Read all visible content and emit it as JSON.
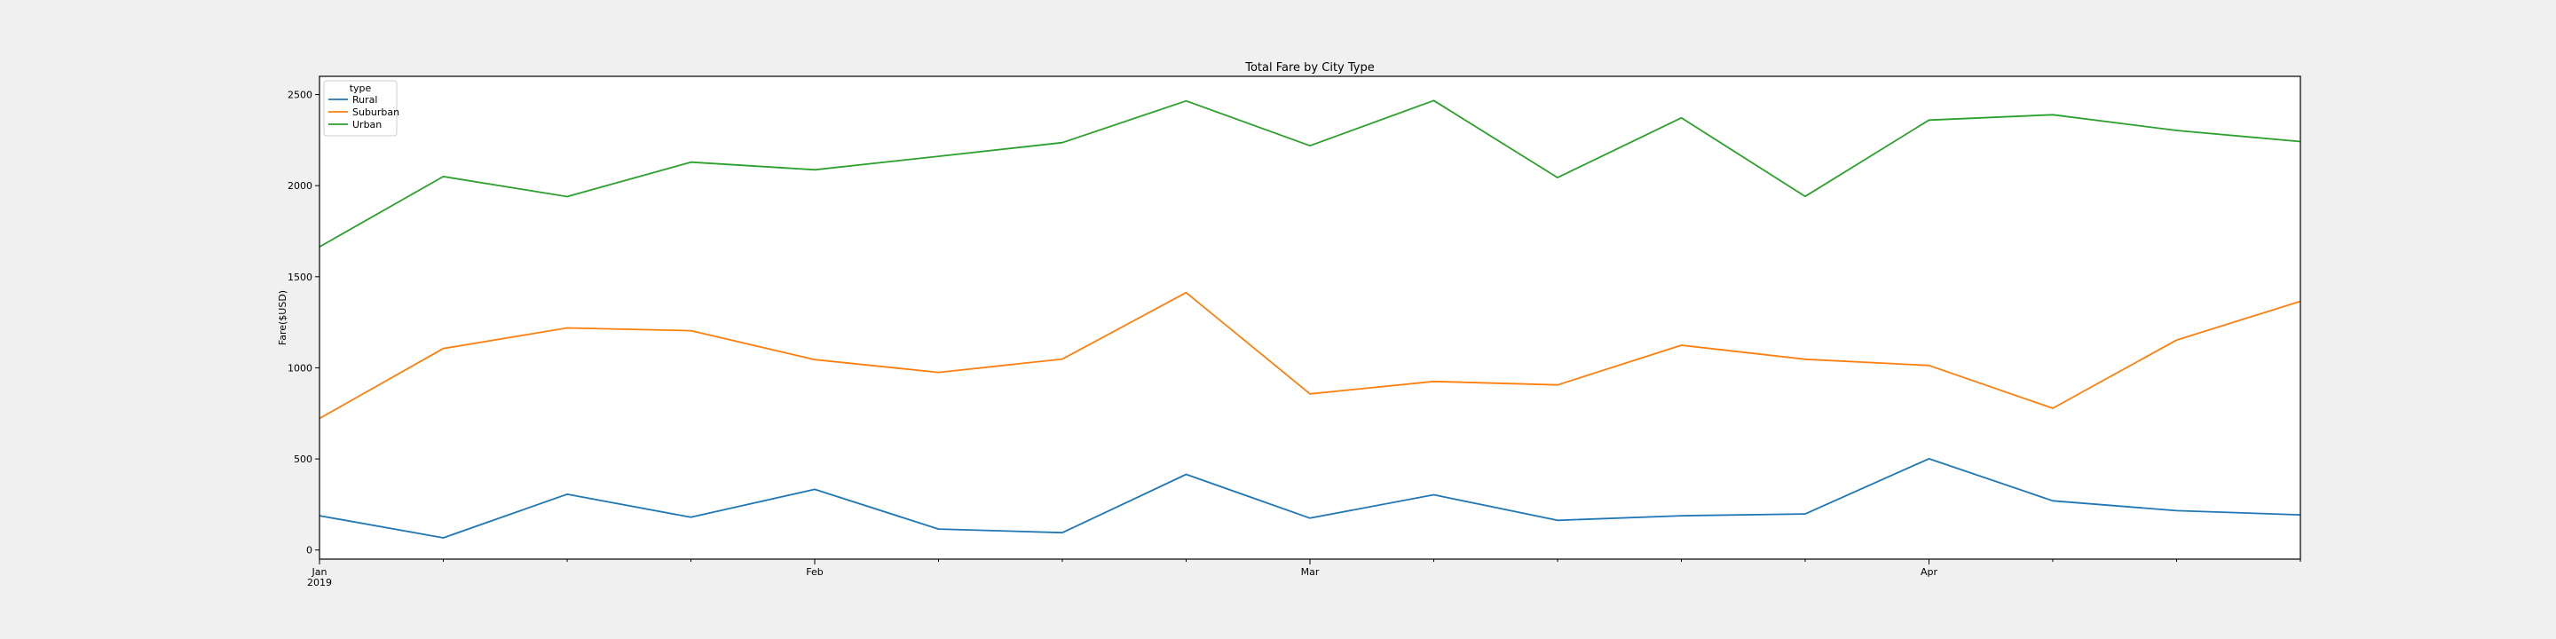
{
  "chart_data": {
    "type": "line",
    "title": "Total Fare by City Type",
    "xlabel": "",
    "ylabel": "Fare($USD)",
    "x": [
      "2019-01-06",
      "2019-01-13",
      "2019-01-20",
      "2019-01-27",
      "2019-02-03",
      "2019-02-10",
      "2019-02-17",
      "2019-02-24",
      "2019-03-03",
      "2019-03-10",
      "2019-03-17",
      "2019-03-24",
      "2019-03-31",
      "2019-04-07",
      "2019-04-14",
      "2019-04-21",
      "2019-04-28"
    ],
    "x_ticks": [
      {
        "date": "2019-01-06",
        "label": "Jan",
        "sublabel": "2019"
      },
      {
        "date": "2019-02-03",
        "label": "Feb",
        "sublabel": ""
      },
      {
        "date": "2019-03-03",
        "label": "Mar",
        "sublabel": ""
      },
      {
        "date": "2019-04-07",
        "label": "Apr",
        "sublabel": ""
      }
    ],
    "xlim": [
      "2019-01-06",
      "2019-04-28"
    ],
    "ylim": [
      -50,
      2600
    ],
    "y_ticks": [
      0,
      500,
      1000,
      1500,
      2000,
      2500
    ],
    "grid": false,
    "legend": {
      "title": "type",
      "position": "top-left"
    },
    "series": [
      {
        "name": "Rural",
        "color": "#1f77b4",
        "values": [
          188,
          67,
          306,
          180,
          333,
          115,
          95,
          415,
          175,
          303,
          163,
          188,
          198,
          501,
          270,
          216,
          193
        ]
      },
      {
        "name": "Suburban",
        "color": "#ff7f0e",
        "values": [
          722,
          1106,
          1219,
          1204,
          1045,
          975,
          1048,
          1413,
          857,
          925,
          906,
          1124,
          1047,
          1013,
          778,
          1152,
          1365
        ]
      },
      {
        "name": "Urban",
        "color": "#2ca02c",
        "values": [
          1664,
          2050,
          1940,
          2129,
          2087,
          2161,
          2236,
          2465,
          2219,
          2467,
          2044,
          2372,
          1941,
          2360,
          2389,
          2303,
          2242
        ]
      }
    ]
  }
}
